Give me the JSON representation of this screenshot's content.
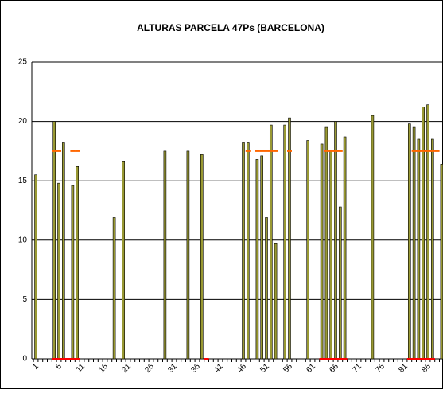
{
  "chart_data": {
    "type": "bar",
    "title": "ALTURAS PARCELA 47Ps (BARCELONA)",
    "categories": [
      "1",
      null,
      null,
      null,
      null,
      "6",
      null,
      null,
      null,
      null,
      "11",
      null,
      null,
      null,
      null,
      "16",
      null,
      null,
      null,
      null,
      "21",
      null,
      null,
      null,
      null,
      "26",
      null,
      null,
      null,
      null,
      "31",
      null,
      null,
      null,
      null,
      "36",
      null,
      null,
      null,
      null,
      "41",
      null,
      null,
      null,
      null,
      "46",
      null,
      null,
      null,
      null,
      "51",
      null,
      null,
      null,
      null,
      "56",
      null,
      null,
      null,
      null,
      "61",
      null,
      null,
      null,
      null,
      "66",
      null,
      null,
      null,
      null,
      "71",
      null,
      null,
      null,
      null,
      "76",
      null,
      null,
      null,
      null,
      "81",
      null,
      null,
      null,
      null,
      "86",
      null,
      null,
      null,
      null
    ],
    "series": [
      {
        "kind": "bar",
        "color": "#999933",
        "values": [
          15.5,
          null,
          null,
          null,
          20,
          14.8,
          18.2,
          null,
          14.6,
          16.2,
          null,
          null,
          null,
          null,
          null,
          null,
          null,
          11.9,
          null,
          16.6,
          null,
          null,
          null,
          null,
          null,
          null,
          null,
          null,
          17.5,
          null,
          null,
          null,
          null,
          17.5,
          null,
          null,
          17.2,
          null,
          null,
          null,
          null,
          null,
          null,
          null,
          null,
          18.2,
          18.2,
          null,
          16.8,
          17.1,
          11.9,
          19.7,
          9.7,
          null,
          19.7,
          20.3,
          null,
          null,
          null,
          18.4,
          null,
          null,
          18.1,
          19.5,
          17.5,
          20,
          12.8,
          18.7,
          null,
          null,
          null,
          null,
          null,
          20.5,
          null,
          null,
          null,
          null,
          null,
          null,
          null,
          19.8,
          19.5,
          18.5,
          21.2,
          21.4,
          18.5,
          null,
          16.4,
          null
        ]
      },
      {
        "kind": "dash",
        "color": "#ff6600",
        "values": [
          null,
          null,
          null,
          null,
          17.5,
          17.5,
          null,
          null,
          17.5,
          17.5,
          null,
          null,
          null,
          null,
          null,
          null,
          null,
          null,
          null,
          null,
          null,
          null,
          null,
          null,
          null,
          null,
          null,
          null,
          null,
          null,
          null,
          null,
          null,
          null,
          null,
          null,
          null,
          null,
          null,
          null,
          null,
          null,
          null,
          null,
          null,
          null,
          17.5,
          null,
          17.5,
          17.5,
          17.5,
          17.5,
          17.5,
          null,
          null,
          17.5,
          null,
          null,
          null,
          null,
          null,
          null,
          null,
          17.5,
          17.5,
          17.5,
          17.5,
          null,
          null,
          null,
          null,
          null,
          null,
          null,
          null,
          null,
          null,
          null,
          null,
          null,
          null,
          null,
          17.5,
          17.5,
          17.5,
          17.5,
          17.5,
          17.5,
          null,
          null
        ]
      },
      {
        "kind": "dash",
        "color": "#ff0000",
        "values": [
          null,
          null,
          null,
          null,
          0,
          0,
          0,
          0,
          0,
          0,
          null,
          null,
          null,
          null,
          null,
          null,
          null,
          null,
          null,
          null,
          null,
          null,
          null,
          null,
          null,
          null,
          null,
          null,
          null,
          null,
          null,
          null,
          null,
          null,
          null,
          null,
          null,
          0,
          null,
          null,
          null,
          null,
          null,
          null,
          null,
          null,
          null,
          null,
          null,
          null,
          null,
          null,
          null,
          null,
          null,
          null,
          null,
          null,
          null,
          null,
          null,
          null,
          0,
          0,
          0,
          0,
          0,
          0,
          null,
          null,
          null,
          null,
          null,
          null,
          null,
          null,
          null,
          null,
          null,
          null,
          null,
          0,
          0,
          0,
          0,
          0,
          0,
          null,
          null,
          null
        ]
      }
    ],
    "ylim": [
      0,
      25
    ],
    "yticks": [
      0,
      5,
      10,
      15,
      20,
      25
    ],
    "grid": true
  }
}
